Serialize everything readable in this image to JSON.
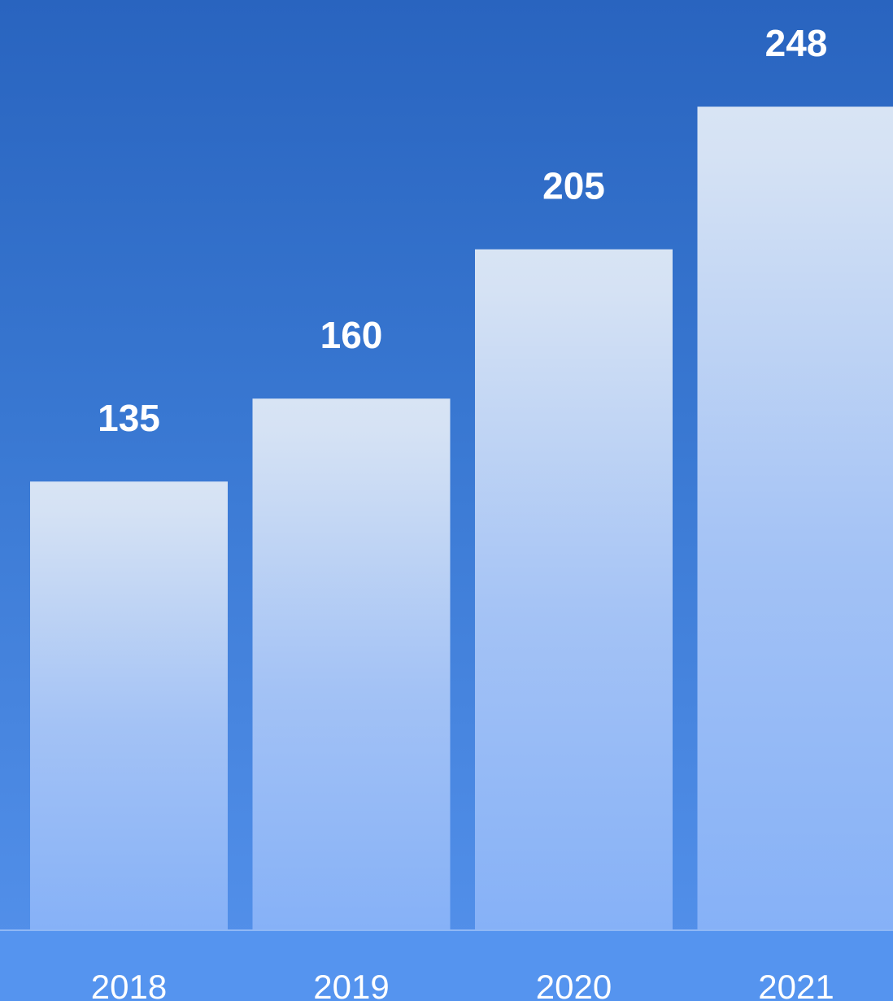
{
  "chart_data": {
    "type": "bar",
    "categories": [
      "2018",
      "2019",
      "2020",
      "2021"
    ],
    "values": [
      135,
      160,
      205,
      248
    ],
    "title": "",
    "xlabel": "",
    "ylabel": "",
    "grid": false,
    "legend": "none",
    "colors": {
      "background_top": "#2964bf",
      "background_bottom": "#5592ec",
      "bar_top": "#d8e4f4",
      "bar_bottom": "#86b1f7",
      "axis_band": "#5594ef",
      "axis_line": "#8fb8f5",
      "text": "#ffffff"
    }
  }
}
